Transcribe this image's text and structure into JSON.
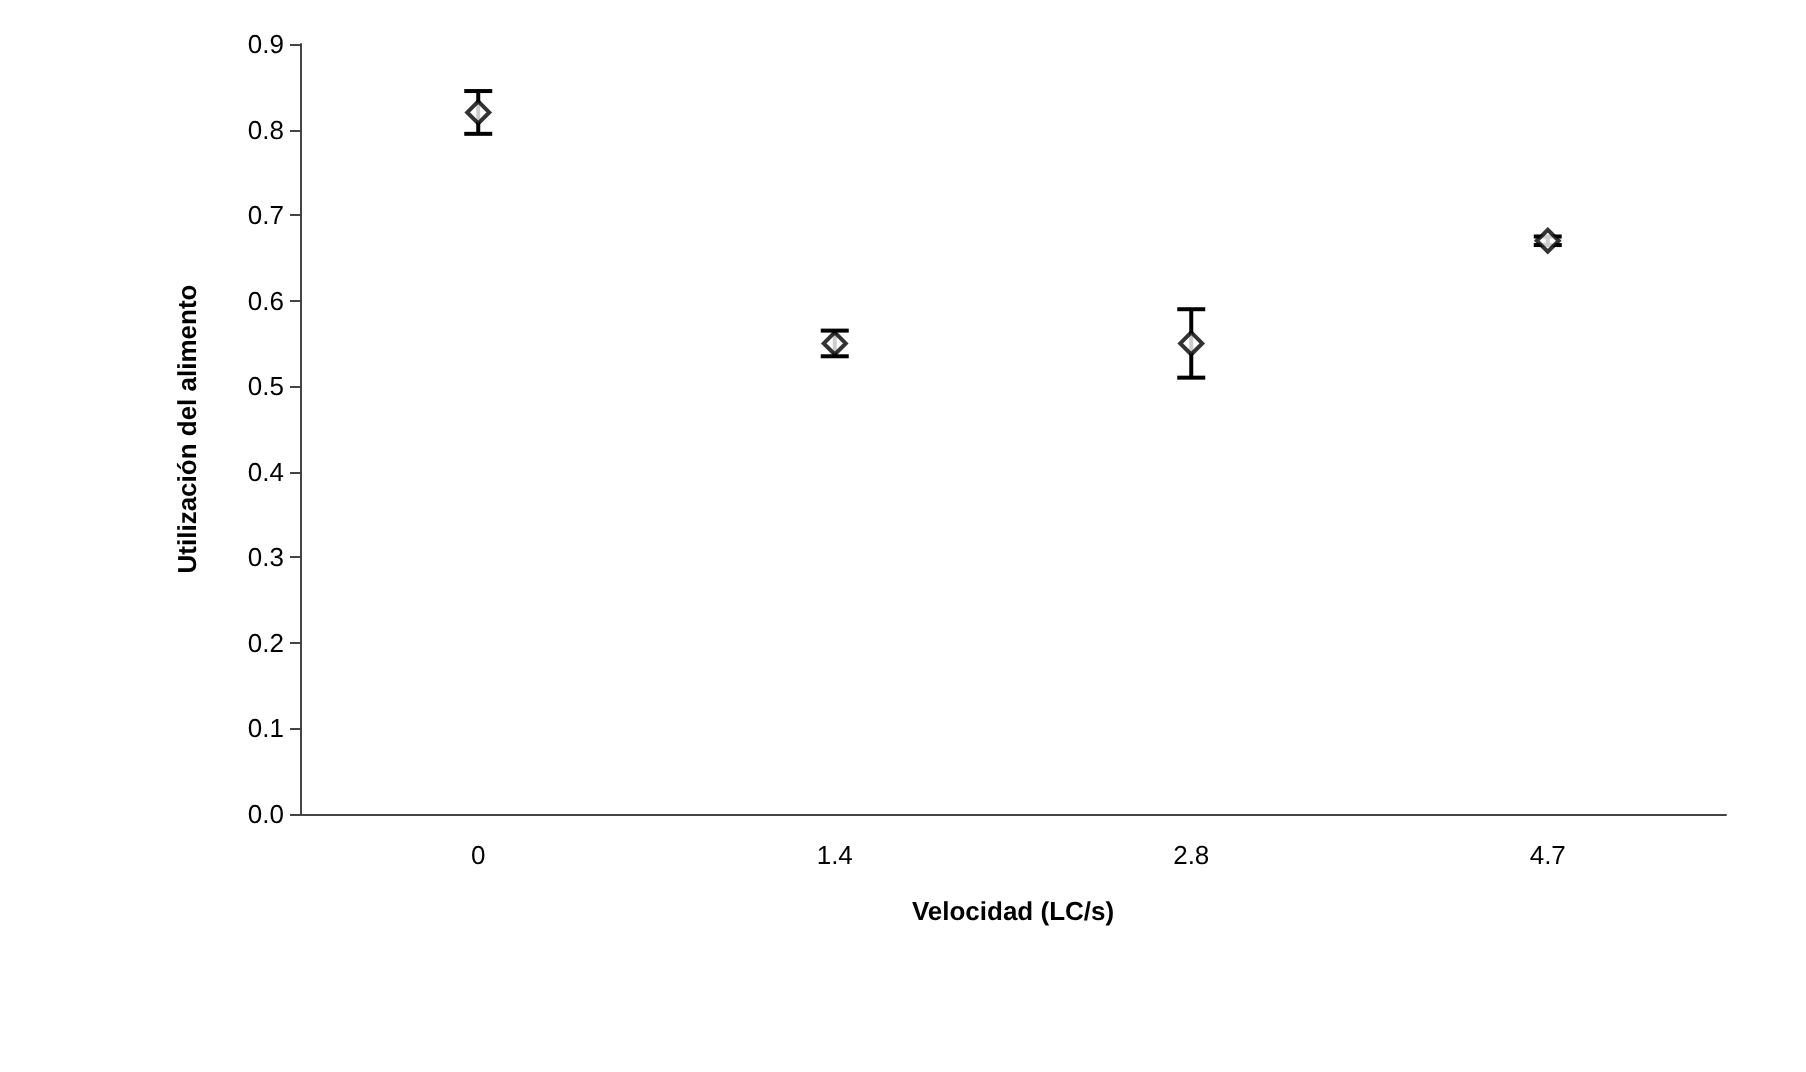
{
  "chart_data": {
    "type": "scatter",
    "xlabel": "Velocidad (LC/s)",
    "ylabel": "Utilización del alimento",
    "categories": [
      "0",
      "1.4",
      "2.8",
      "4.7"
    ],
    "series": [
      {
        "color": "#000000",
        "values": [
          0.82,
          0.55,
          0.55,
          0.67
        ],
        "errors": [
          0.025,
          0.015,
          0.04,
          0.005
        ]
      }
    ],
    "ylim": [
      0,
      0.9
    ],
    "yticks": [
      {
        "value": 0,
        "label": "0.0"
      },
      0.1,
      0.2,
      0.3,
      0.4,
      0.5,
      0.6,
      0.7,
      0.8,
      0.9
    ],
    "marker": "diamond",
    "grid": false
  }
}
